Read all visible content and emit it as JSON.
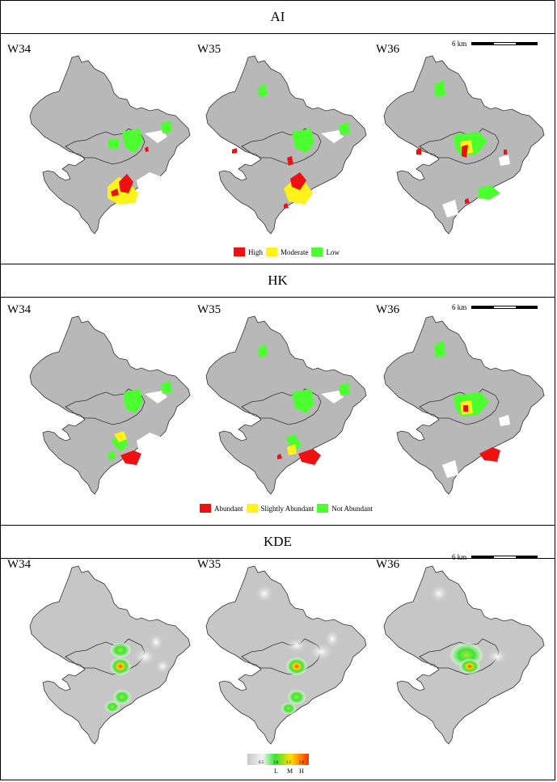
{
  "colors": {
    "base_fill": "#b8b8b8",
    "district_line": "#3a3a3a",
    "high": "#ee1111",
    "moderate": "#fff21a",
    "low": "#4cff2e",
    "kde_bg": "#c6c6c6"
  },
  "sections": [
    {
      "title": "AI",
      "weeks": [
        "W34",
        "W35",
        "W36"
      ],
      "scale_label": "6 km",
      "legend": [
        {
          "label": "High",
          "color": "#ee1111"
        },
        {
          "label": "Moderate",
          "color": "#fff21a"
        },
        {
          "label": "Low",
          "color": "#4cff2e"
        }
      ]
    },
    {
      "title": "HK",
      "weeks": [
        "W34",
        "W35",
        "W36"
      ],
      "scale_label": "6 km",
      "legend": [
        {
          "label": "Abundant",
          "color": "#ee1111"
        },
        {
          "label": "Slightly Abundant",
          "color": "#fff21a"
        },
        {
          "label": "Not Abundant",
          "color": "#4cff2e"
        }
      ]
    },
    {
      "title": "KDE",
      "weeks": [
        "W34",
        "W35",
        "W36"
      ],
      "scale_label": "6 km",
      "legend_ticks": [
        "0.5",
        "1.0",
        "1.5",
        "2.0"
      ],
      "legend_labels": [
        "L",
        "M",
        "H"
      ]
    }
  ]
}
